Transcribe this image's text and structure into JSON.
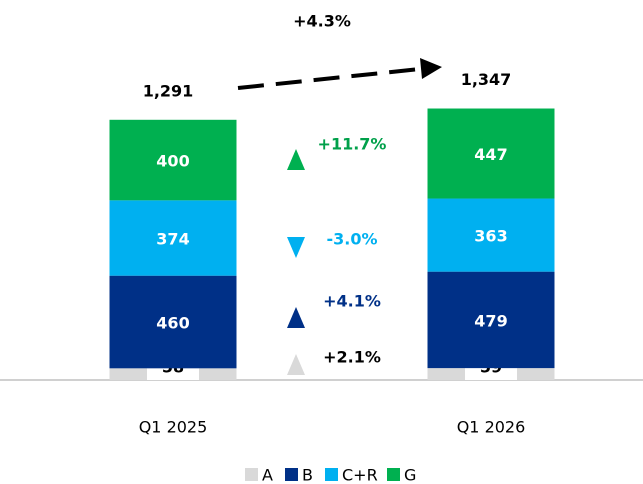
{
  "chart_data": {
    "type": "stacked_bar",
    "categories": [
      "Q1 2025",
      "Q1 2026"
    ],
    "series": [
      {
        "name": "A",
        "color": "#d9d9d9",
        "text_color": "#000000",
        "change_color": "#000000",
        "values": [
          58,
          59
        ],
        "change": 2.1,
        "change_label": "+2.1%"
      },
      {
        "name": "B",
        "color": "#003087",
        "text_color": "#ffffff",
        "change_color": "#003087",
        "values": [
          460,
          479
        ],
        "change": 4.1,
        "change_label": "+4.1%"
      },
      {
        "name": "C+R",
        "color": "#00b0f0",
        "text_color": "#ffffff",
        "change_color": "#00b0f0",
        "values": [
          374,
          363
        ],
        "change": -3.0,
        "change_label": "-3.0%"
      },
      {
        "name": "G",
        "color": "#00b050",
        "text_color": "#ffffff",
        "change_color": "#00a04a",
        "values": [
          400,
          447
        ],
        "change": 11.7,
        "change_label": "+11.7%"
      }
    ],
    "totals": [
      1291,
      1347
    ],
    "totals_labels": [
      "1,291",
      "1,347"
    ],
    "total_change": 4.3,
    "total_change_label": "+4.3%"
  }
}
